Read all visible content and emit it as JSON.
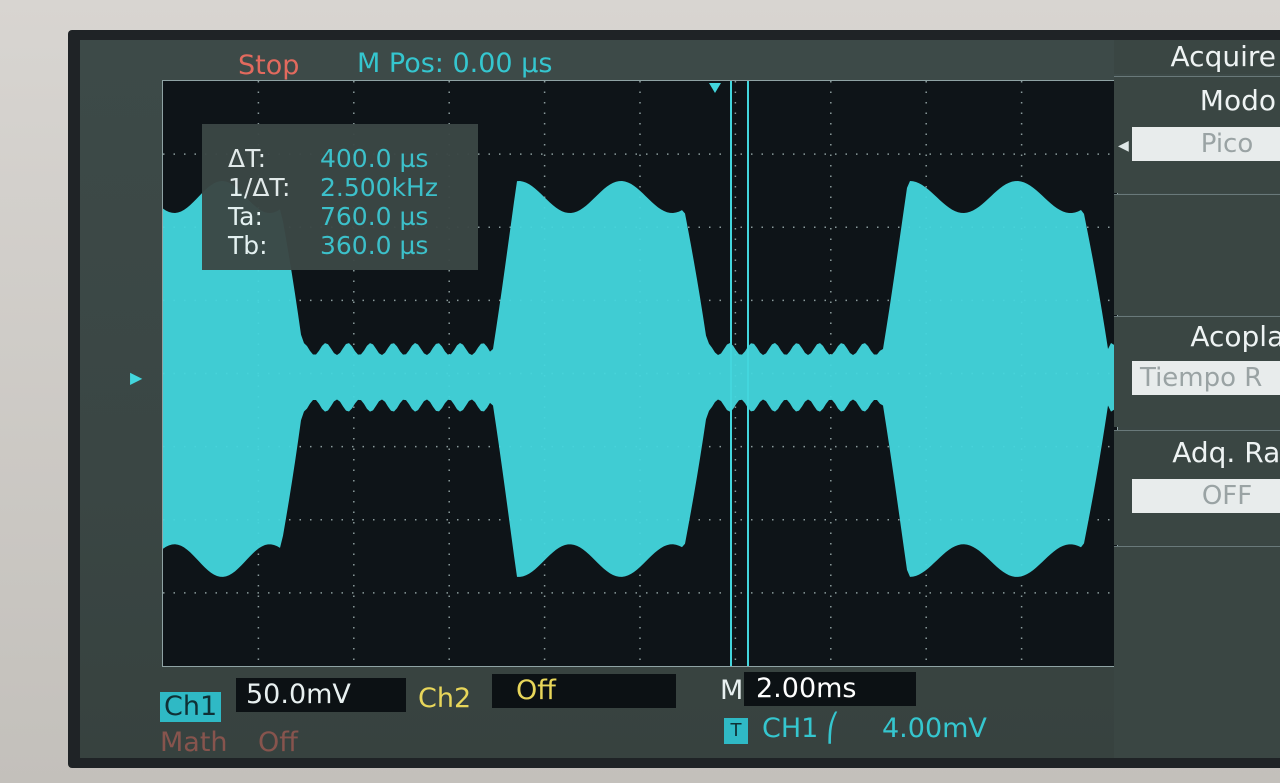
{
  "status_bar": {
    "run_state": "Stop",
    "m_pos": "M Pos: 0.00 µs"
  },
  "cursors": {
    "delta_t_label": "ΔT:",
    "delta_t_value": "400.0 µs",
    "inv_delta_t_label": "1/ΔT:",
    "inv_delta_t_value": "2.500kHz",
    "ta_label": "Ta:",
    "ta_value": "760.0 µs",
    "tb_label": "Tb:",
    "tb_value": "360.0 µs"
  },
  "menu": {
    "title": "Acquire",
    "mode_title": "Modo",
    "mode_value": "Pico",
    "coupling_title": "Acoplan",
    "coupling_value": "Tiempo R",
    "fast_acq_title": "Adq. Rap",
    "fast_acq_value": "OFF"
  },
  "channels": {
    "ch1_label": "Ch1",
    "ch1_scale": "50.0mV",
    "ch2_label": "Ch2",
    "ch2_scale": "Off",
    "math_label": "Math",
    "math_value": "Off"
  },
  "timebase": {
    "label": "M",
    "value": "2.00ms"
  },
  "trigger": {
    "icon": "T",
    "source": "CH1",
    "slope": "rising-edge-icon",
    "slope_glyph": "⎛",
    "level": "4.00mV"
  },
  "colors": {
    "ch1": "#35c6cf",
    "ch2": "#e8d65a",
    "math": "#c9635a",
    "stop": "#e26a5e"
  }
}
